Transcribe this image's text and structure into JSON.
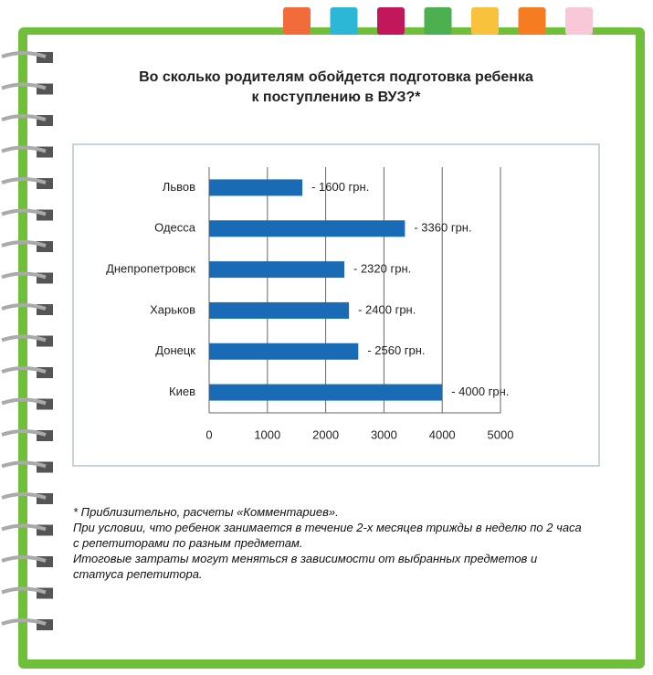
{
  "chart_data": {
    "type": "barh",
    "title": [
      "Во сколько родителям обойдется подготовка ребенка",
      "к  поступлению в ВУЗ?*"
    ],
    "categories": [
      "Львов",
      "Одесса",
      "Днепропетровск",
      "Харьков",
      "Донецк",
      "Киев"
    ],
    "values": [
      1600,
      3360,
      2320,
      2400,
      2560,
      4000
    ],
    "value_labels": [
      "- 1600 грн.",
      "- 3360 грн.",
      "- 2320 грн.",
      "- 2400 грн.",
      "- 2560 грн.",
      "- 4000 грн."
    ],
    "color": "#1a6bb5",
    "xlim": [
      0,
      5000
    ],
    "xticks": [
      0,
      1000,
      2000,
      3000,
      4000,
      5000
    ],
    "grid": true,
    "notes": [
      "* Приблизительно, расчеты «Комментариев».",
      "При условии, что ребенок занимается в течение 2-х месяцев трижды в неделю по 2 часа с репетиторами по разным предметам.",
      "Итоговые затраты могут меняться в зависимости от выбранных предметов и статуса репетитора."
    ]
  }
}
